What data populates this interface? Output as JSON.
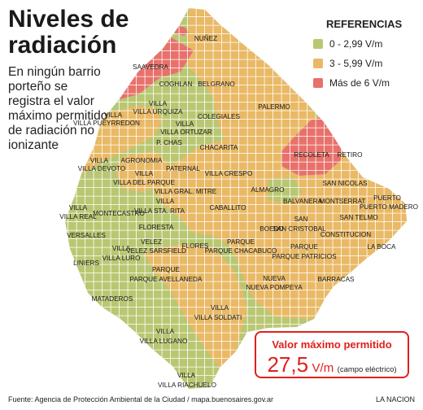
{
  "title": "Niveles de\nradiación",
  "subtitle": "En ningún barrio porteño se registra el valor máximo permitido de radiación no ionizante",
  "legend": {
    "title": "REFERENCIAS",
    "items": [
      {
        "label": "0 - 2,99 V/m",
        "color": "#b9c772"
      },
      {
        "label": "3 - 5,99 V/m",
        "color": "#e9b966"
      },
      {
        "label": "Más de 6 V/m",
        "color": "#e8716b"
      }
    ]
  },
  "colors": {
    "green": "#b9c772",
    "orange": "#e9b966",
    "red": "#e8716b",
    "grid": "#ffffff"
  },
  "neighborhoods": [
    "NUÑEZ",
    "SAAVEDRA",
    "COGHLAN",
    "BELGRANO",
    "VILLA URQUIZA",
    "VILLA PUEYRREDON",
    "PALERMO",
    "COLEGIALES",
    "VILLA ORTUZAR",
    "P. CHAS",
    "CHACARITA",
    "RECOLETA",
    "RETIRO",
    "AGRONOMIA",
    "PATERNAL",
    "VILLA DEVOTO",
    "VILLA DEL PARQUE",
    "VILLA CRESPO",
    "SAN NICOLAS",
    "ALMAGRO",
    "VILLA GRAL. MITRE",
    "VILLA STA. RITA",
    "PUERTO MADERO",
    "BALVANERA",
    "MONTSERRAT",
    "VILLA REAL",
    "MONTECASTRO",
    "CABALLITO",
    "SAN TELMO",
    "FLORESTA",
    "SAN CRISTOBAL",
    "VERSALLES",
    "BOEDO",
    "CONSTITUCION",
    "VILLA LURO",
    "VELEZ SARSFIELD",
    "FLORES",
    "PARQUE CHACABUCO",
    "PARQUE PATRICIOS",
    "LA BOCA",
    "LINIERS",
    "PARQUE AVELLANEDA",
    "NUEVA POMPEYA",
    "BARRACAS",
    "MATADEROS",
    "VILLA SOLDATI",
    "VILLA LUGANO",
    "VILLA RIACHUELO"
  ],
  "box": {
    "title": "Valor máximo permitido",
    "value": "27,5",
    "unit": "V/m",
    "note": "(campo eléctrico)"
  },
  "footer": {
    "source": "Fuente: Agencia de Protección Ambiental de la Ciudad / mapa.buenosaires.gov.ar",
    "credit": "LA NACION"
  }
}
